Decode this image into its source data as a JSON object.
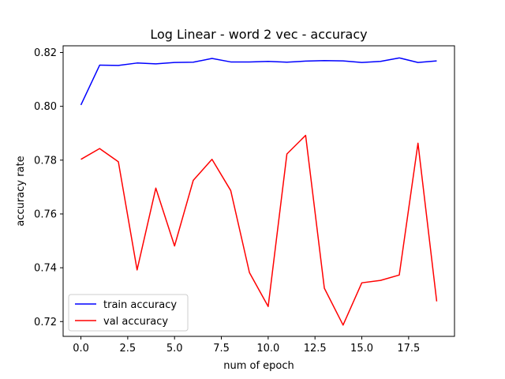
{
  "chart_data": {
    "type": "line",
    "title": "Log Linear - word 2 vec - accuracy",
    "xlabel": "num of epoch",
    "ylabel": "accuracy rate",
    "xlim": [
      -0.95,
      19.95
    ],
    "ylim": [
      0.7145,
      0.8225
    ],
    "x_ticks": [
      0.0,
      2.5,
      5.0,
      7.5,
      10.0,
      12.5,
      15.0,
      17.5
    ],
    "x_tick_labels": [
      "0.0",
      "2.5",
      "5.0",
      "7.5",
      "10.0",
      "12.5",
      "15.0",
      "17.5"
    ],
    "y_ticks": [
      0.72,
      0.74,
      0.76,
      0.78,
      0.8,
      0.82
    ],
    "y_tick_labels": [
      "0.72",
      "0.74",
      "0.76",
      "0.78",
      "0.80",
      "0.82"
    ],
    "grid": false,
    "legend_position": "lower-left",
    "x": [
      0,
      1,
      2,
      3,
      4,
      5,
      6,
      7,
      8,
      9,
      10,
      11,
      12,
      13,
      14,
      15,
      16,
      17,
      18,
      19
    ],
    "series": [
      {
        "name": "train accuracy",
        "color": "#0000ff",
        "values": [
          0.8005,
          0.8153,
          0.8152,
          0.8161,
          0.8158,
          0.8163,
          0.8164,
          0.8178,
          0.8165,
          0.8165,
          0.8167,
          0.8164,
          0.8168,
          0.817,
          0.8169,
          0.8163,
          0.8167,
          0.818,
          0.8163,
          0.8169
        ]
      },
      {
        "name": "val accuracy",
        "color": "#ff0000",
        "values": [
          0.7803,
          0.7843,
          0.7794,
          0.7392,
          0.7696,
          0.7481,
          0.7725,
          0.7803,
          0.7687,
          0.7382,
          0.7256,
          0.7823,
          0.7892,
          0.7324,
          0.7187,
          0.7344,
          0.7353,
          0.7373,
          0.7863,
          0.7275
        ]
      }
    ]
  }
}
